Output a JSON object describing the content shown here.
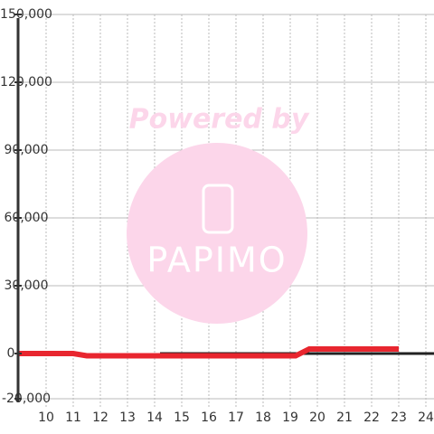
{
  "chart_data": {
    "type": "line",
    "watermark": {
      "line1": "Powered by",
      "line2": "PAPIMO"
    },
    "xlim": [
      8.967,
      24.3
    ],
    "ylim": [
      -20000,
      150000
    ],
    "xticks": [
      10,
      11,
      12,
      13,
      14,
      15,
      16,
      17,
      18,
      19,
      20,
      21,
      22,
      23,
      24
    ],
    "yticks": [
      {
        "value": -20000,
        "label": "-20,000"
      },
      0,
      {
        "value": 30000,
        "label": "30,000"
      },
      {
        "value": 60000,
        "label": "60,000"
      },
      {
        "value": 90000,
        "label": "90,000"
      },
      {
        "value": 120000,
        "label": "120,000"
      },
      {
        "value": 150000,
        "label": "150,000"
      }
    ],
    "grid": true,
    "series": [
      {
        "color": "#222222",
        "x": [
          14.2,
          24.3
        ],
        "values": [
          0,
          0
        ]
      },
      {
        "color": "#e8262f",
        "x": [
          8.967,
          11,
          11.5,
          19.2,
          19.7,
          23
        ],
        "values": [
          0,
          0,
          -1000,
          -1000,
          2000,
          2000
        ]
      }
    ]
  }
}
